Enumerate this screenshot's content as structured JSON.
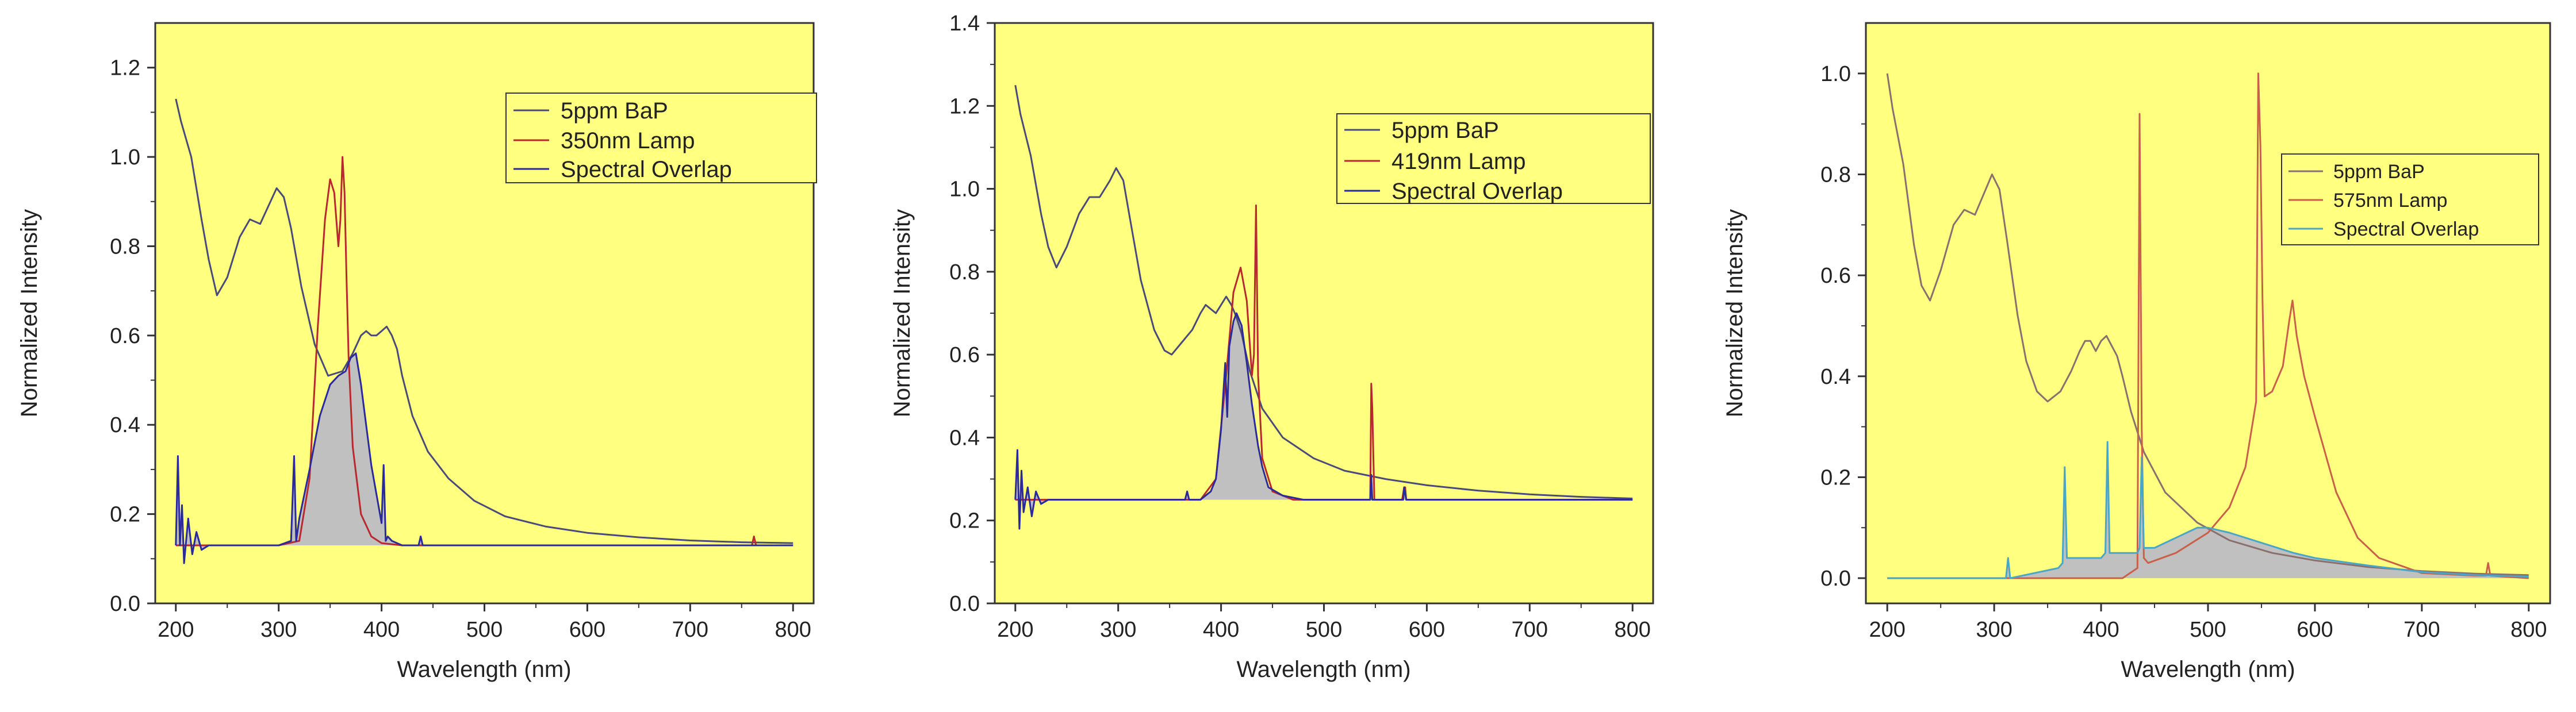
{
  "chart_data": [
    {
      "type": "line",
      "panel": "left",
      "xlabel": "Wavelength (nm)",
      "ylabel": "Normalized Intensity",
      "xlim": [
        180,
        820
      ],
      "ylim": [
        0.0,
        1.3
      ],
      "xticks": [
        200,
        300,
        400,
        500,
        600,
        700,
        800
      ],
      "xtick_labels": [
        "200",
        "300",
        "400",
        "500",
        "600",
        "700",
        "800"
      ],
      "yticks": [
        0.0,
        0.2,
        0.4,
        0.6,
        0.8,
        1.0,
        1.2
      ],
      "ytick_labels": [
        "0.0",
        "0.2",
        "0.4",
        "0.6",
        "0.8",
        "1.0",
        "1.2"
      ],
      "legend_position": "top-right",
      "series": [
        {
          "name": "5ppm BaP",
          "color": "#4a4a7a",
          "x": [
            200,
            205,
            215,
            225,
            232,
            240,
            250,
            262,
            272,
            282,
            292,
            298,
            305,
            312,
            322,
            335,
            348,
            362,
            372,
            380,
            385,
            390,
            395,
            400,
            405,
            410,
            415,
            420,
            430,
            445,
            465,
            490,
            520,
            560,
            600,
            650,
            700,
            750,
            800
          ],
          "y": [
            1.13,
            1.08,
            1.0,
            0.86,
            0.77,
            0.69,
            0.73,
            0.82,
            0.86,
            0.85,
            0.9,
            0.93,
            0.91,
            0.84,
            0.71,
            0.58,
            0.51,
            0.52,
            0.56,
            0.6,
            0.61,
            0.6,
            0.6,
            0.61,
            0.62,
            0.6,
            0.57,
            0.51,
            0.42,
            0.34,
            0.28,
            0.23,
            0.195,
            0.172,
            0.158,
            0.148,
            0.141,
            0.137,
            0.135
          ]
        },
        {
          "name": "350nm Lamp",
          "color": "#b8292f",
          "x": [
            200,
            300,
            320,
            330,
            338,
            345,
            350,
            354,
            358,
            360,
            362,
            364,
            366,
            368,
            372,
            380,
            390,
            400,
            420,
            500,
            600,
            700,
            760,
            762,
            764,
            800
          ],
          "y": [
            0.13,
            0.13,
            0.14,
            0.28,
            0.62,
            0.86,
            0.95,
            0.92,
            0.8,
            0.86,
            1.0,
            0.92,
            0.72,
            0.55,
            0.35,
            0.2,
            0.15,
            0.135,
            0.13,
            0.13,
            0.13,
            0.13,
            0.13,
            0.15,
            0.13,
            0.13
          ]
        },
        {
          "name": "Spectral Overlap",
          "color": "#2a2a9a",
          "fill": "#c0c0c0",
          "x": [
            200,
            202,
            204,
            206,
            208,
            212,
            216,
            220,
            225,
            232,
            250,
            300,
            312,
            315,
            317,
            320,
            330,
            340,
            350,
            358,
            365,
            370,
            375,
            380,
            390,
            400,
            402,
            404,
            406,
            410,
            420,
            430,
            436,
            438,
            440,
            460,
            500,
            600,
            700,
            800
          ],
          "y": [
            0.13,
            0.33,
            0.13,
            0.22,
            0.09,
            0.19,
            0.11,
            0.16,
            0.12,
            0.13,
            0.13,
            0.13,
            0.14,
            0.33,
            0.14,
            0.19,
            0.3,
            0.42,
            0.49,
            0.51,
            0.52,
            0.55,
            0.56,
            0.49,
            0.31,
            0.18,
            0.31,
            0.14,
            0.15,
            0.14,
            0.13,
            0.13,
            0.13,
            0.15,
            0.13,
            0.13,
            0.13,
            0.13,
            0.13,
            0.13
          ]
        }
      ]
    },
    {
      "type": "line",
      "panel": "middle",
      "xlabel": "Wavelength (nm)",
      "ylabel": "Normalized Intensity",
      "xlim": [
        180,
        820
      ],
      "ylim": [
        0.0,
        1.4
      ],
      "xticks": [
        200,
        300,
        400,
        500,
        600,
        700,
        800
      ],
      "xtick_labels": [
        "200",
        "300",
        "400",
        "500",
        "600",
        "700",
        "800"
      ],
      "yticks": [
        0.0,
        0.2,
        0.4,
        0.6,
        0.8,
        1.0,
        1.2,
        1.4
      ],
      "ytick_labels": [
        "0.0",
        "0.2",
        "0.4",
        "0.6",
        "0.8",
        "1.0",
        "1.2",
        "1.4"
      ],
      "legend_position": "top-right",
      "series": [
        {
          "name": "5ppm BaP",
          "color": "#4a4a7a",
          "x": [
            200,
            205,
            215,
            225,
            232,
            240,
            250,
            262,
            272,
            282,
            292,
            298,
            305,
            312,
            322,
            335,
            345,
            352,
            362,
            372,
            380,
            385,
            390,
            395,
            400,
            405,
            410,
            415,
            420,
            428,
            440,
            460,
            490,
            520,
            560,
            600,
            650,
            700,
            750,
            800
          ],
          "y": [
            1.25,
            1.18,
            1.08,
            0.94,
            0.86,
            0.81,
            0.86,
            0.94,
            0.98,
            0.98,
            1.02,
            1.05,
            1.02,
            0.92,
            0.78,
            0.66,
            0.61,
            0.6,
            0.63,
            0.66,
            0.7,
            0.72,
            0.71,
            0.7,
            0.72,
            0.74,
            0.72,
            0.69,
            0.65,
            0.56,
            0.47,
            0.4,
            0.35,
            0.32,
            0.3,
            0.285,
            0.272,
            0.263,
            0.257,
            0.253
          ]
        },
        {
          "name": "419nm Lamp",
          "color": "#b8292f",
          "x": [
            200,
            380,
            395,
            405,
            412,
            419,
            425,
            430,
            432,
            434,
            436,
            440,
            450,
            470,
            500,
            545,
            546,
            547,
            549,
            550,
            576,
            578,
            579,
            580,
            700,
            800
          ],
          "y": [
            0.25,
            0.25,
            0.3,
            0.55,
            0.75,
            0.81,
            0.73,
            0.55,
            0.6,
            0.96,
            0.55,
            0.35,
            0.27,
            0.25,
            0.25,
            0.25,
            0.53,
            0.47,
            0.25,
            0.25,
            0.25,
            0.28,
            0.28,
            0.25,
            0.25,
            0.25
          ]
        },
        {
          "name": "Spectral Overlap",
          "color": "#2a2a9a",
          "fill": "#c0c0c0",
          "x": [
            200,
            202,
            204,
            206,
            208,
            212,
            216,
            220,
            225,
            232,
            250,
            300,
            365,
            367,
            369,
            380,
            390,
            395,
            400,
            404,
            406,
            408,
            412,
            415,
            420,
            425,
            430,
            436,
            440,
            446,
            460,
            480,
            500,
            545,
            546,
            547,
            548,
            577,
            578,
            580,
            600,
            800
          ],
          "y": [
            0.25,
            0.37,
            0.18,
            0.32,
            0.22,
            0.28,
            0.21,
            0.27,
            0.24,
            0.25,
            0.25,
            0.25,
            0.25,
            0.27,
            0.25,
            0.25,
            0.27,
            0.3,
            0.42,
            0.58,
            0.45,
            0.62,
            0.68,
            0.7,
            0.67,
            0.58,
            0.48,
            0.38,
            0.33,
            0.28,
            0.26,
            0.25,
            0.25,
            0.25,
            0.31,
            0.25,
            0.25,
            0.25,
            0.28,
            0.25,
            0.25,
            0.25
          ]
        }
      ]
    },
    {
      "type": "line",
      "panel": "right",
      "xlabel": "Wavelength (nm)",
      "ylabel": "Normalized Intensity",
      "xlim": [
        180,
        820
      ],
      "ylim": [
        -0.05,
        1.1
      ],
      "xticks": [
        200,
        300,
        400,
        500,
        600,
        700,
        800
      ],
      "xtick_labels": [
        "200",
        "300",
        "400",
        "500",
        "600",
        "700",
        "800"
      ],
      "yticks": [
        0.0,
        0.2,
        0.4,
        0.6,
        0.8,
        1.0
      ],
      "ytick_labels": [
        "0.0",
        "0.2",
        "0.4",
        "0.6",
        "0.8",
        "1.0"
      ],
      "legend_position": "top-right",
      "series": [
        {
          "name": "5ppm BaP",
          "color": "#8a6f6f",
          "x": [
            200,
            205,
            215,
            225,
            232,
            240,
            250,
            262,
            272,
            282,
            292,
            298,
            305,
            312,
            322,
            330,
            340,
            350,
            362,
            372,
            380,
            385,
            390,
            395,
            400,
            405,
            410,
            415,
            420,
            428,
            440,
            460,
            490,
            520,
            560,
            600,
            650,
            700,
            750,
            800
          ],
          "y": [
            1.0,
            0.93,
            0.82,
            0.66,
            0.58,
            0.55,
            0.61,
            0.7,
            0.73,
            0.72,
            0.77,
            0.8,
            0.77,
            0.67,
            0.52,
            0.43,
            0.37,
            0.35,
            0.37,
            0.41,
            0.45,
            0.47,
            0.47,
            0.45,
            0.47,
            0.48,
            0.46,
            0.44,
            0.4,
            0.33,
            0.25,
            0.17,
            0.11,
            0.075,
            0.05,
            0.035,
            0.022,
            0.014,
            0.009,
            0.006
          ]
        },
        {
          "name": "575nm Lamp",
          "color": "#c8604a",
          "x": [
            200,
            420,
            434,
            436,
            438,
            440,
            444,
            470,
            500,
            520,
            535,
            545,
            547,
            549,
            551,
            553,
            560,
            570,
            576,
            579,
            583,
            590,
            600,
            620,
            640,
            660,
            700,
            750,
            760,
            762,
            764,
            800
          ],
          "y": [
            0.0,
            0.0,
            0.02,
            0.92,
            0.3,
            0.04,
            0.03,
            0.05,
            0.09,
            0.14,
            0.22,
            0.35,
            1.0,
            0.86,
            0.55,
            0.36,
            0.37,
            0.42,
            0.51,
            0.55,
            0.48,
            0.4,
            0.32,
            0.17,
            0.08,
            0.04,
            0.01,
            0.005,
            0.005,
            0.03,
            0.005,
            0.0
          ]
        },
        {
          "name": "Spectral Overlap",
          "color": "#4aa6c6",
          "fill": "#c0c0c0",
          "x": [
            200,
            300,
            311,
            313,
            315,
            360,
            364,
            366,
            368,
            400,
            404,
            406,
            408,
            434,
            436,
            438,
            440,
            450,
            470,
            490,
            500,
            520,
            550,
            580,
            600,
            650,
            700,
            750,
            800
          ],
          "y": [
            0.0,
            0.0,
            0.0,
            0.04,
            0.0,
            0.02,
            0.03,
            0.22,
            0.04,
            0.04,
            0.05,
            0.27,
            0.05,
            0.05,
            0.06,
            0.24,
            0.06,
            0.06,
            0.08,
            0.1,
            0.1,
            0.09,
            0.07,
            0.05,
            0.04,
            0.025,
            0.012,
            0.006,
            0.003
          ]
        }
      ]
    }
  ],
  "colors": {
    "plot_background": "#ffff80",
    "overlap_fill": "#c0c0c0",
    "axis": "#333333"
  }
}
